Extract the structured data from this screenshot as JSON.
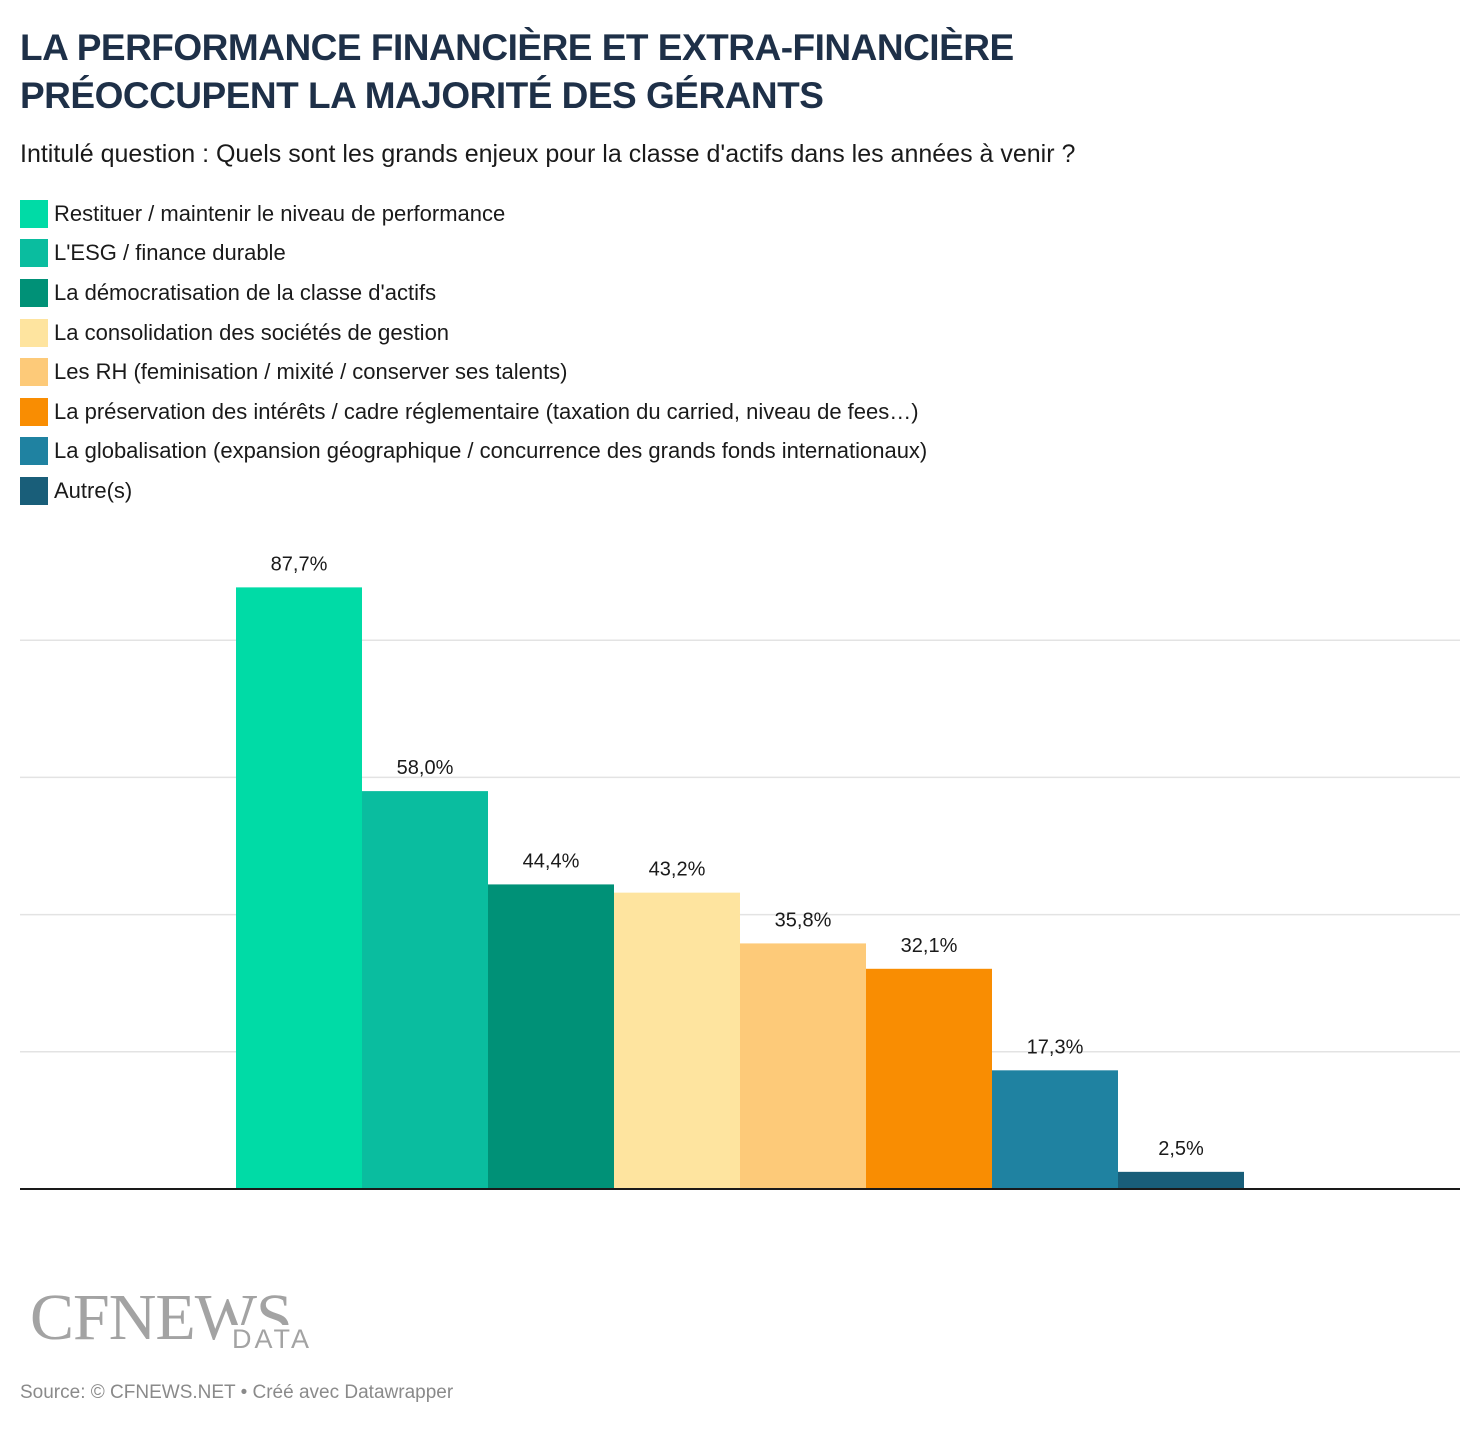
{
  "header": {
    "title_line1": "LA PERFORMANCE FINANCIÈRE ET EXTRA-FINANCIÈRE",
    "title_line2": "PRÉOCCUPENT LA MAJORITÉ DES GÉRANTS",
    "subtitle": "Intitulé question : Quels sont les grands enjeux pour la classe d'actifs dans les années à venir ?"
  },
  "chart_data": {
    "type": "bar",
    "title": "LA PERFORMANCE FINANCIÈRE ET EXTRA-FINANCIÈRE PRÉOCCUPENT LA MAJORITÉ DES GÉRANTS",
    "subtitle": "Intitulé question : Quels sont les grands enjeux pour la classe d'actifs dans les années à venir ?",
    "legend_position": "top-left",
    "grid": true,
    "ylim": [
      0,
      80
    ],
    "gridlines": [
      20,
      40,
      60,
      80
    ],
    "series": [
      {
        "name": "Restituer / maintenir le niveau de performance",
        "value": 87.7,
        "label": "87,7%",
        "color": "#00dba6"
      },
      {
        "name": "L'ESG / finance durable",
        "value": 58.0,
        "label": "58,0%",
        "color": "#0abd9f"
      },
      {
        "name": "La démocratisation de la classe d'actifs",
        "value": 44.4,
        "label": "44,4%",
        "color": "#009177"
      },
      {
        "name": "La consolidation des sociétés de gestion",
        "value": 43.2,
        "label": "43,2%",
        "color": "#fee49f"
      },
      {
        "name": "Les RH (feminisation / mixité / conserver ses talents)",
        "value": 35.8,
        "label": "35,8%",
        "color": "#fdca79"
      },
      {
        "name": "La préservation des intérêts / cadre réglementaire (taxation du carried, niveau de fees…)",
        "value": 32.1,
        "label": "32,1%",
        "color": "#f98d02"
      },
      {
        "name": "La globalisation (expansion géographique / concurrence des grands fonds internationaux)",
        "value": 17.3,
        "label": "17,3%",
        "color": "#1f82a1"
      },
      {
        "name": "Autre(s)",
        "value": 2.5,
        "label": "2,5%",
        "color": "#195e79"
      }
    ]
  },
  "logo": {
    "main": "CFNEWS",
    "sub": "DATA"
  },
  "footer": {
    "source": "Source: © CFNEWS.NET • Créé avec Datawrapper"
  }
}
